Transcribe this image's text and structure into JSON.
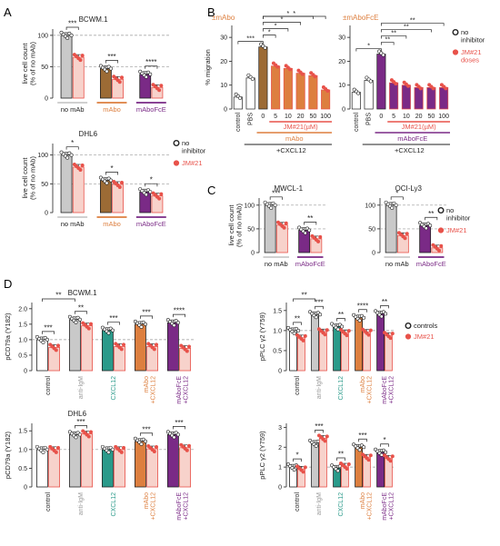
{
  "colors": {
    "grey": "#c9c9c9",
    "orange": "#dd7f3f",
    "purple": "#7a2a86",
    "teal": "#2a9a8a",
    "brown": "#9c6b35",
    "red": "#e8524a",
    "dark": "#222222",
    "dash": "#9a9a9a"
  },
  "panels": {
    "A": "A",
    "B": "B",
    "C": "C",
    "D": "D"
  },
  "chart_data": [
    {
      "id": "A1",
      "type": "bar",
      "title": "BCWM.1",
      "ylabel": "live cell count\n(% of no mAb)",
      "ylim": [
        0,
        110
      ],
      "yticks": [
        0,
        50,
        100
      ],
      "ref_lines": [
        50,
        100
      ],
      "groups": [
        {
          "label": "no mAb",
          "color": "grey",
          "bars": [
            {
              "value": 100,
              "fill": "grey"
            },
            {
              "value": 65,
              "fill": "red"
            }
          ]
        },
        {
          "label": "mAbo",
          "color": "orange",
          "bars": [
            {
              "value": 47,
              "fill": "brown"
            },
            {
              "value": 30,
              "fill": "red"
            }
          ]
        },
        {
          "label": "mAboFcE",
          "color": "purple",
          "bars": [
            {
              "value": 38,
              "fill": "purple"
            },
            {
              "value": 17,
              "fill": "red"
            }
          ]
        }
      ],
      "significance": [
        "***",
        "***",
        "****"
      ]
    },
    {
      "id": "A2",
      "type": "bar",
      "title": "DHL6",
      "ylabel": "live cell count\n(% of no mAb)",
      "ylim": [
        0,
        120
      ],
      "yticks": [
        0,
        50,
        100
      ],
      "ref_lines": [
        50,
        100
      ],
      "legend": [
        {
          "label": "no\ninhibitor",
          "marker": "open"
        },
        {
          "label": "JM#21",
          "marker": "red"
        }
      ],
      "groups": [
        {
          "label": "no mAb",
          "color": "grey",
          "bars": [
            {
              "value": 100,
              "fill": "grey"
            },
            {
              "value": 79,
              "fill": "red"
            }
          ]
        },
        {
          "label": "mAbo",
          "color": "orange",
          "bars": [
            {
              "value": 56,
              "fill": "brown"
            },
            {
              "value": 49,
              "fill": "red"
            }
          ]
        },
        {
          "label": "mAboFcE",
          "color": "purple",
          "bars": [
            {
              "value": 36,
              "fill": "purple"
            },
            {
              "value": 29,
              "fill": "red"
            }
          ]
        }
      ],
      "significance": [
        "*",
        "*",
        "*"
      ]
    },
    {
      "id": "B1",
      "type": "bar",
      "title": "±mAbo",
      "ylabel": "% migration",
      "ylim": [
        0,
        35
      ],
      "yticks": [
        0,
        10,
        20,
        30
      ],
      "ref_lines": [],
      "categories": [
        "control",
        "PBS",
        "0",
        "5",
        "10",
        "20",
        "50",
        "100"
      ],
      "values": [
        5,
        13,
        26,
        18,
        17,
        15,
        14,
        8
      ],
      "fills": [
        "white",
        "white",
        "brown",
        "orange",
        "orange",
        "orange",
        "orange",
        "orange"
      ],
      "dose_label": "JM#21(µM)",
      "group_label": "mAbo",
      "bottom_label": "+CXCL12",
      "significance": [
        "***",
        "*",
        "*",
        "*",
        "*",
        "*"
      ]
    },
    {
      "id": "B2",
      "type": "bar",
      "title": "±mAboFcE",
      "ylabel": "",
      "ylim": [
        0,
        35
      ],
      "yticks": [
        0,
        10,
        20,
        30
      ],
      "ref_lines": [],
      "categories": [
        "control",
        "PBS",
        "0",
        "5",
        "10",
        "20",
        "50",
        "100"
      ],
      "values": [
        7,
        12,
        23,
        11,
        10,
        9,
        9,
        9
      ],
      "fills": [
        "white",
        "white",
        "purple",
        "purple",
        "purple",
        "purple",
        "purple",
        "purple"
      ],
      "dose_label": "JM#21(µM)",
      "group_label": "mAboFcE",
      "bottom_label": "+CXCL12",
      "legend": [
        {
          "label": "no\ninhibitor",
          "marker": "open"
        },
        {
          "label": "JM#21\ndoses",
          "marker": "red"
        }
      ],
      "significance": [
        "*",
        "**",
        "**",
        "**",
        "**"
      ]
    },
    {
      "id": "C1",
      "type": "bar",
      "title": "MWCL-1",
      "ylabel": "live cell count\n(% of no mAb)",
      "ylim": [
        0,
        115
      ],
      "yticks": [
        0,
        50,
        100
      ],
      "ref_lines": [
        50,
        100
      ],
      "groups": [
        {
          "label": "no mAb",
          "color": "grey",
          "bars": [
            {
              "value": 100,
              "fill": "grey"
            },
            {
              "value": 58,
              "fill": "red"
            }
          ]
        },
        {
          "label": "mAboFcE",
          "color": "purple",
          "bars": [
            {
              "value": 47,
              "fill": "purple"
            },
            {
              "value": 29,
              "fill": "red"
            }
          ]
        }
      ],
      "significance": [
        "***",
        "**"
      ]
    },
    {
      "id": "C2",
      "type": "bar",
      "title": "OCI-Ly3",
      "ylabel": "",
      "ylim": [
        0,
        115
      ],
      "yticks": [
        0,
        50,
        100
      ],
      "ref_lines": [
        50,
        100
      ],
      "legend": [
        {
          "label": "no\ninhibitor",
          "marker": "open"
        },
        {
          "label": "JM#21",
          "marker": "red"
        }
      ],
      "groups": [
        {
          "label": "no mAb",
          "color": "grey",
          "bars": [
            {
              "value": 100,
              "fill": "grey"
            },
            {
              "value": 36,
              "fill": "red"
            }
          ]
        },
        {
          "label": "mAboFcE",
          "color": "purple",
          "bars": [
            {
              "value": 57,
              "fill": "purple"
            },
            {
              "value": 10,
              "fill": "red"
            }
          ]
        }
      ],
      "significance": [
        "*",
        "**"
      ]
    },
    {
      "id": "D1",
      "type": "bar",
      "title": "BCWM.1",
      "ylabel": "pCD79a (Y182)",
      "ylim": [
        0,
        2.2
      ],
      "yticks": [
        0,
        0.5,
        1.0,
        1.5,
        2.0
      ],
      "ref_lines": [
        1.0
      ],
      "groups": [
        {
          "label": "control",
          "color": "dark",
          "bars": [
            {
              "value": 1.0,
              "fill": "white"
            },
            {
              "value": 0.75,
              "fill": "red"
            }
          ]
        },
        {
          "label": "anti-IgM",
          "color": "dash",
          "bars": [
            {
              "value": 1.65,
              "fill": "grey"
            },
            {
              "value": 1.45,
              "fill": "red"
            }
          ]
        },
        {
          "label": "CXCL12",
          "color": "teal",
          "bars": [
            {
              "value": 1.3,
              "fill": "teal"
            },
            {
              "value": 0.78,
              "fill": "red"
            }
          ]
        },
        {
          "label": "mAbo\n+CXCL12",
          "color": "orange",
          "bars": [
            {
              "value": 1.5,
              "fill": "orange"
            },
            {
              "value": 0.78,
              "fill": "red"
            }
          ]
        },
        {
          "label": "mAboFcE\n+CXCL12",
          "color": "purple",
          "bars": [
            {
              "value": 1.55,
              "fill": "purple"
            },
            {
              "value": 0.72,
              "fill": "red"
            }
          ]
        }
      ],
      "significance": [
        "**",
        "***",
        "**",
        "***",
        "***",
        "****"
      ]
    },
    {
      "id": "D2",
      "type": "bar",
      "title": "",
      "ylabel": "pPLC γ2 (Y759)",
      "ylim": [
        0,
        1.7
      ],
      "yticks": [
        0,
        0.5,
        1.0,
        1.5
      ],
      "ref_lines": [
        1.0
      ],
      "legend": [
        {
          "label": "controls",
          "marker": "open"
        },
        {
          "label": "JM#21",
          "marker": "red"
        }
      ],
      "groups": [
        {
          "label": "control",
          "color": "dark",
          "bars": [
            {
              "value": 1.0,
              "fill": "white"
            },
            {
              "value": 0.82,
              "fill": "red"
            }
          ]
        },
        {
          "label": "anti-IgM",
          "color": "dash",
          "bars": [
            {
              "value": 1.4,
              "fill": "grey"
            },
            {
              "value": 0.97,
              "fill": "red"
            }
          ]
        },
        {
          "label": "CXCL12",
          "color": "teal",
          "bars": [
            {
              "value": 1.1,
              "fill": "teal"
            },
            {
              "value": 0.95,
              "fill": "red"
            }
          ]
        },
        {
          "label": "mAbo\n+CXCL12",
          "color": "orange",
          "bars": [
            {
              "value": 1.32,
              "fill": "orange"
            },
            {
              "value": 0.96,
              "fill": "red"
            }
          ]
        },
        {
          "label": "mAboFcE\n+CXCL12",
          "color": "purple",
          "bars": [
            {
              "value": 1.42,
              "fill": "purple"
            },
            {
              "value": 0.88,
              "fill": "red"
            }
          ]
        }
      ],
      "significance": [
        "**",
        "**",
        "***",
        "**",
        "****",
        "**"
      ]
    },
    {
      "id": "D3",
      "type": "bar",
      "title": "DHL6",
      "ylabel": "pCD79a (Y182)",
      "ylim": [
        0,
        1.7
      ],
      "yticks": [
        0,
        0.5,
        1.0,
        1.5
      ],
      "ref_lines": [
        1.0
      ],
      "groups": [
        {
          "label": "control",
          "color": "dark",
          "bars": [
            {
              "value": 1.0,
              "fill": "white"
            },
            {
              "value": 1.0,
              "fill": "red"
            }
          ]
        },
        {
          "label": "anti-IgM",
          "color": "dash",
          "bars": [
            {
              "value": 1.4,
              "fill": "grey"
            },
            {
              "value": 1.42,
              "fill": "red"
            }
          ]
        },
        {
          "label": "CXCL12",
          "color": "teal",
          "bars": [
            {
              "value": 1.0,
              "fill": "teal"
            },
            {
              "value": 1.0,
              "fill": "red"
            }
          ]
        },
        {
          "label": "mAbo\n+CXCL12",
          "color": "orange",
          "bars": [
            {
              "value": 1.22,
              "fill": "orange"
            },
            {
              "value": 1.02,
              "fill": "red"
            }
          ]
        },
        {
          "label": "mAboFcE\n+CXCL12",
          "color": "purple",
          "bars": [
            {
              "value": 1.4,
              "fill": "purple"
            },
            {
              "value": 1.05,
              "fill": "red"
            }
          ]
        }
      ],
      "significance": [
        "***",
        "***",
        "***"
      ]
    },
    {
      "id": "D4",
      "type": "bar",
      "title": "",
      "ylabel": "pPLC γ2 (Y759)",
      "ylim": [
        0,
        3.2
      ],
      "yticks": [
        0,
        1,
        2,
        3
      ],
      "ref_lines": [
        1.0
      ],
      "groups": [
        {
          "label": "control",
          "color": "dark",
          "bars": [
            {
              "value": 1.0,
              "fill": "white"
            },
            {
              "value": 0.9,
              "fill": "red"
            }
          ]
        },
        {
          "label": "anti-IgM",
          "color": "dash",
          "bars": [
            {
              "value": 2.2,
              "fill": "grey"
            },
            {
              "value": 2.45,
              "fill": "red"
            }
          ]
        },
        {
          "label": "CXCL12",
          "color": "teal",
          "bars": [
            {
              "value": 0.95,
              "fill": "teal"
            },
            {
              "value": 1.05,
              "fill": "red"
            }
          ]
        },
        {
          "label": "mAbo\n+CXCL12",
          "color": "orange",
          "bars": [
            {
              "value": 2.0,
              "fill": "orange"
            },
            {
              "value": 1.5,
              "fill": "red"
            }
          ]
        },
        {
          "label": "mAboFcE\n+CXCL12",
          "color": "purple",
          "bars": [
            {
              "value": 1.75,
              "fill": "purple"
            },
            {
              "value": 1.45,
              "fill": "red"
            }
          ]
        }
      ],
      "significance": [
        "*",
        "***",
        "**",
        "***",
        "*"
      ]
    }
  ]
}
